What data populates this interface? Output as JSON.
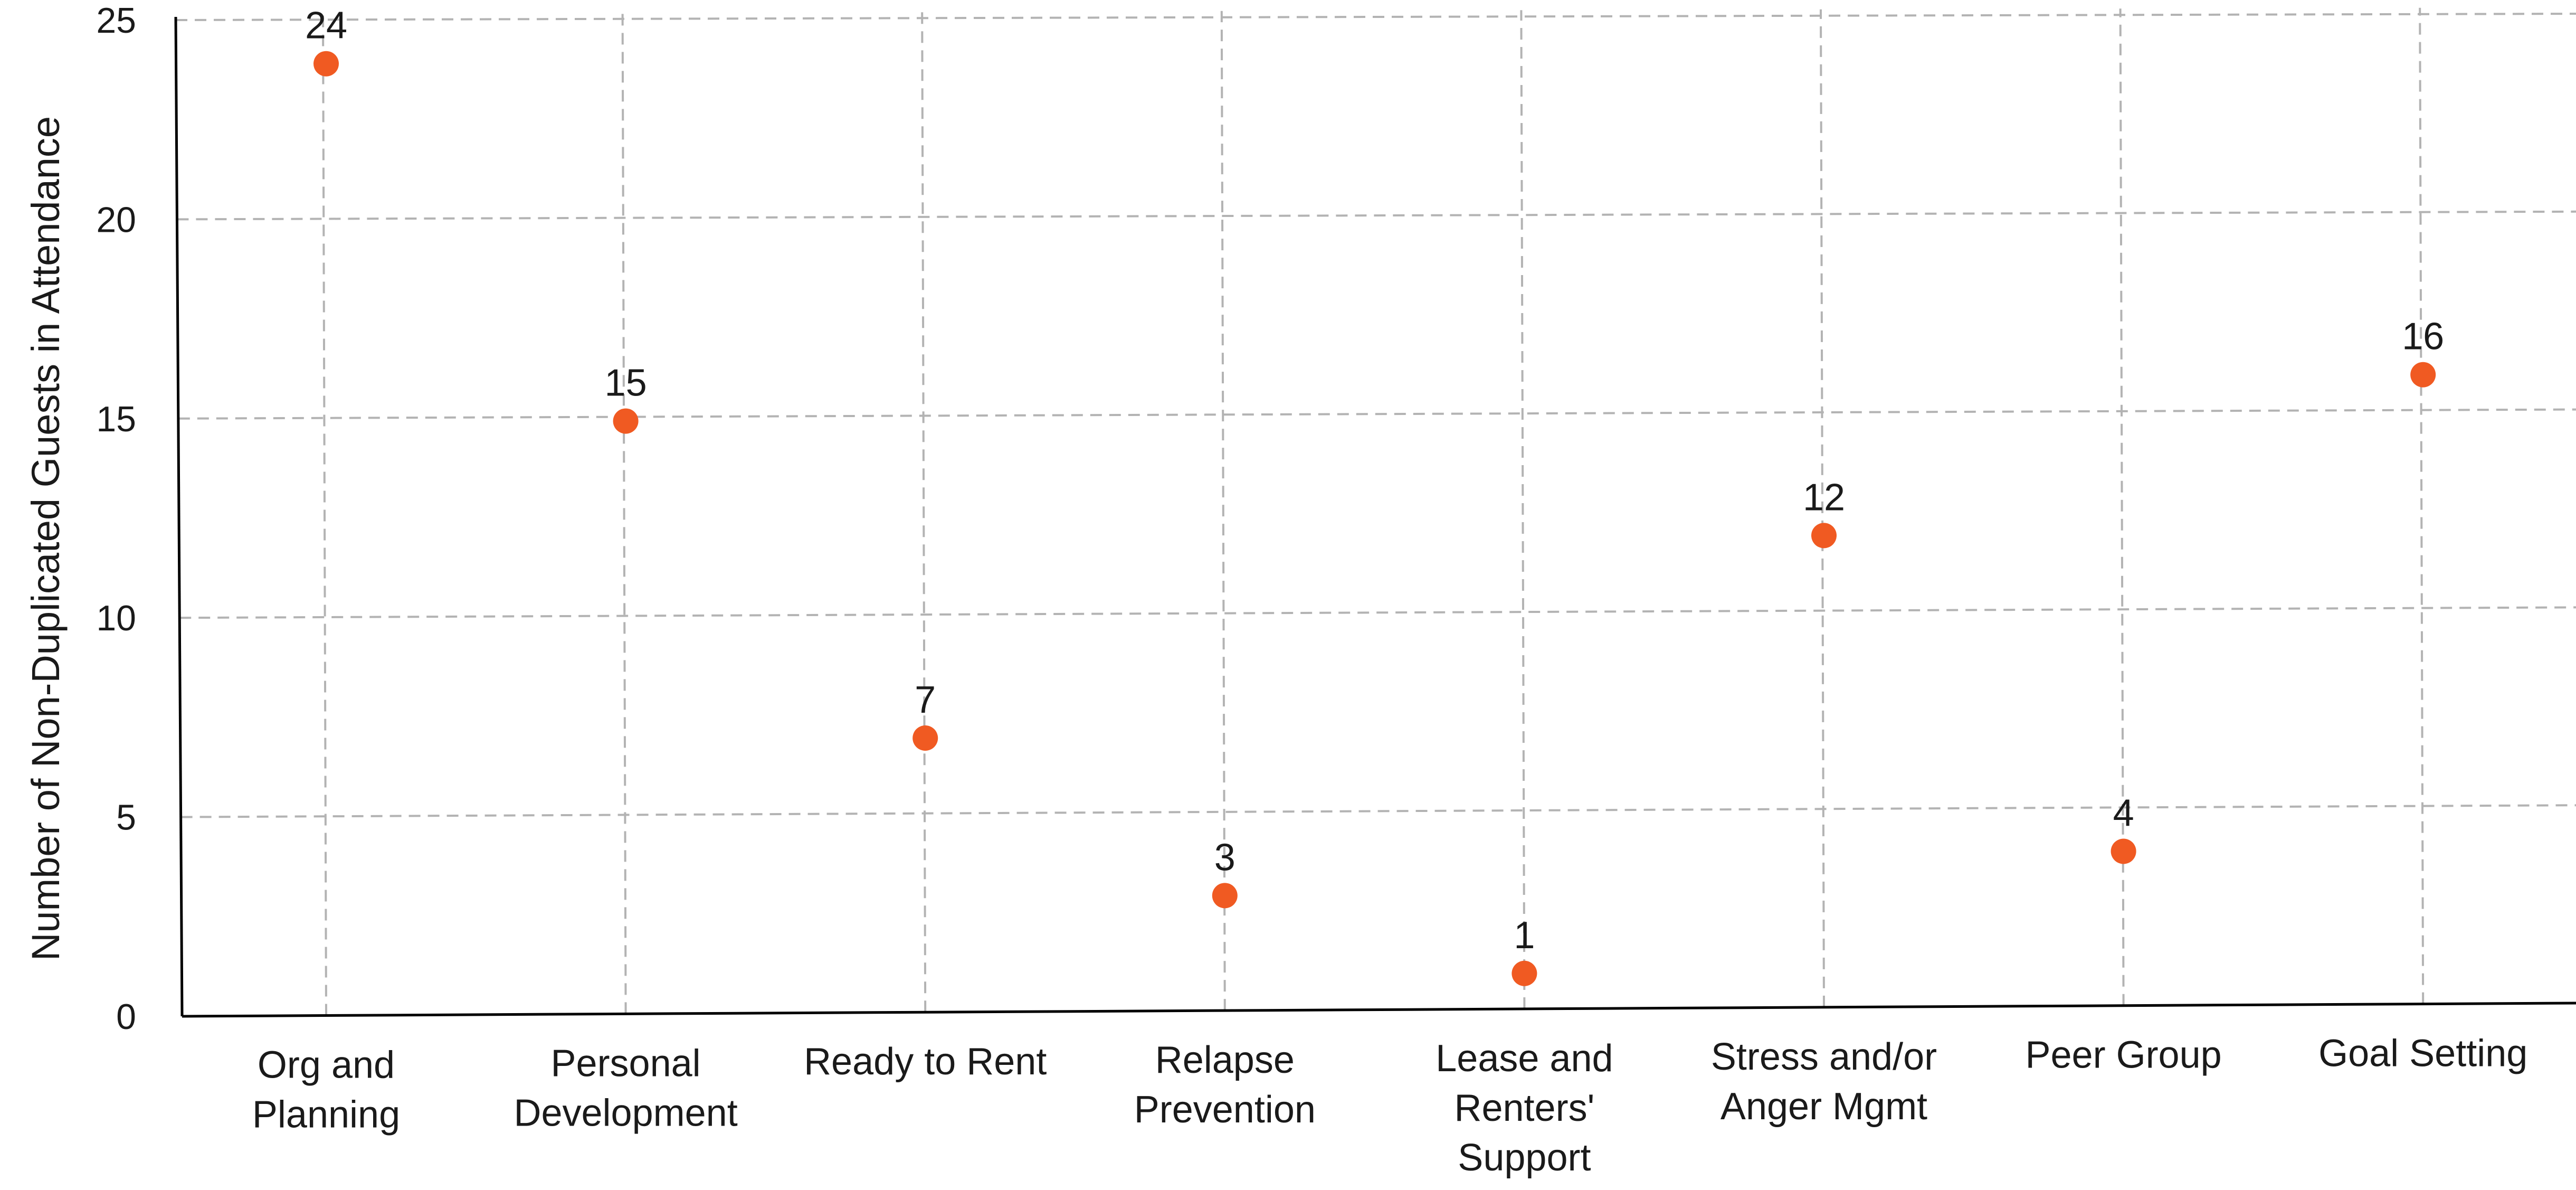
{
  "chart_data": {
    "type": "scatter",
    "title": "",
    "xlabel": "",
    "ylabel": "Number of Non-Duplicated Guests in Attendance",
    "ylim": [
      0,
      25
    ],
    "yticks": [
      "0",
      "5",
      "10",
      "15",
      "20",
      "25"
    ],
    "grid": true,
    "categories": [
      [
        "Org and",
        "Planning"
      ],
      [
        "Personal",
        "Development"
      ],
      [
        "Ready to Rent"
      ],
      [
        "Relapse",
        "Prevention"
      ],
      [
        "Lease and",
        "Renters'",
        "Support"
      ],
      [
        "Stress and/or",
        "Anger Mgmt"
      ],
      [
        "Peer Group"
      ],
      [
        "Goal Setting"
      ]
    ],
    "values": [
      24,
      15,
      7,
      3,
      1,
      12,
      4,
      16
    ],
    "data_labels": [
      "24",
      "15",
      "7",
      "3",
      "1",
      "12",
      "4",
      "16"
    ],
    "marker_color": "#f05a22",
    "grid_color": "#b3b3b3",
    "axis_color": "#000000"
  }
}
